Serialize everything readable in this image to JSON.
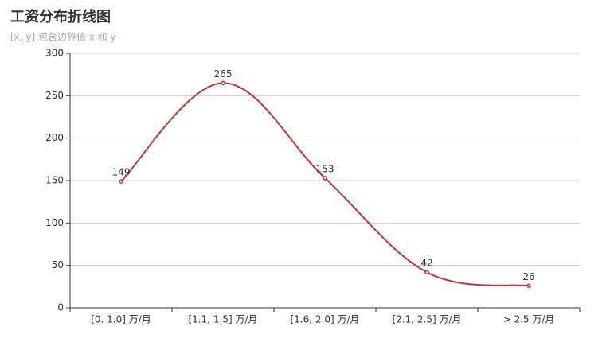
{
  "chart_data": {
    "type": "line",
    "title": "工资分布折线图",
    "subtitle": "[x, y] 包含边界值 x 和 y",
    "categories": [
      "[0. 1.0] 万/月",
      "[1.1, 1.5] 万/月",
      "[1.6, 2.0] 万/月",
      "[2.1, 2.5] 万/月",
      "> 2.5 万/月"
    ],
    "values": [
      149,
      265,
      153,
      42,
      26
    ],
    "color": "#c23531",
    "smooth": true,
    "ylim": [
      0,
      300
    ],
    "yticks": [
      0,
      50,
      100,
      150,
      200,
      250,
      300
    ],
    "grid": true
  }
}
